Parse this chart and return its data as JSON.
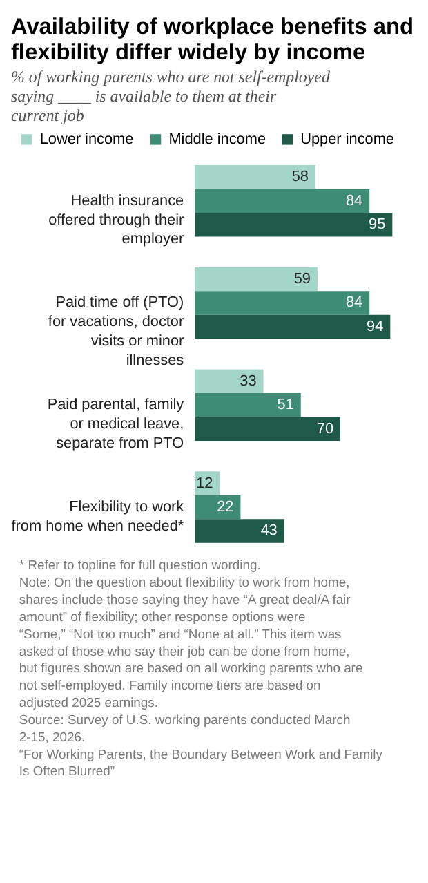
{
  "chart_data": {
    "type": "bar",
    "orientation": "horizontal",
    "title": "Availability of workplace benefits and flexibility differ widely by income",
    "subtitle": "% of working parents who are not self-employed saying ____ is available to them at their current job",
    "categories": [
      "Health insurance offered through their employer",
      "Paid time off (PTO) for vacations, doctor visits or minor illnesses",
      "Paid parental, family or medical leave, separate from PTO",
      "Flexibility to work from home when needed*"
    ],
    "series": [
      {
        "name": "Lower income",
        "color": "#a3d6c9",
        "values": [
          58,
          59,
          33,
          12
        ]
      },
      {
        "name": "Middle income",
        "color": "#3e8c76",
        "values": [
          84,
          84,
          51,
          22
        ]
      },
      {
        "name": "Upper income",
        "color": "#1f5a48",
        "values": [
          95,
          94,
          70,
          43
        ]
      }
    ],
    "data_labels": true,
    "legend": "top left",
    "grid": false,
    "tick_labels": false,
    "annotations": [
      "* Refer to topline for full question wording.",
      "Note: On the question about flexibility to work from home, shares include those saying they have “A great deal/A fair amount” of flexibility; other response options were “Some,” “Not too much” and “None at all.” This item was asked of those who say their job can be done from home, but figures shown are based on all working parents who are not self-employed. Family income tiers are based on adjusted 2025 earnings.",
      "Source: Survey of U.S. working parents conducted March 2-15, 2026.",
      "“For Working Parents, the Boundary Between Work and Family Is Often Blurred”"
    ]
  }
}
